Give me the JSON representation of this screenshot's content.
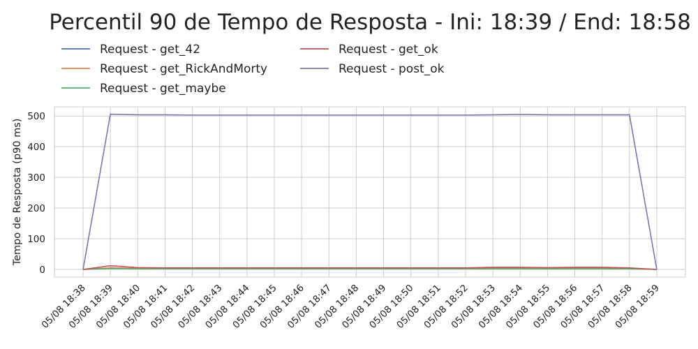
{
  "chart_data": {
    "type": "line",
    "title": "Percentil 90 de Tempo de Resposta - Ini: 18:39 / End: 18:58",
    "xlabel": "",
    "ylabel": "Tempo de Resposta (p90 ms)",
    "ylim": [
      -25,
      530
    ],
    "yticks": [
      0,
      100,
      200,
      300,
      400,
      500
    ],
    "grid": true,
    "legend_position": "top-left, outside plot, 2 columns",
    "x": [
      "05/08 18:38",
      "05/08 18:39",
      "05/08 18:40",
      "05/08 18:41",
      "05/08 18:42",
      "05/08 18:43",
      "05/08 18:44",
      "05/08 18:45",
      "05/08 18:46",
      "05/08 18:47",
      "05/08 18:48",
      "05/08 18:49",
      "05/08 18:50",
      "05/08 18:51",
      "05/08 18:52",
      "05/08 18:53",
      "05/08 18:54",
      "05/08 18:55",
      "05/08 18:56",
      "05/08 18:57",
      "05/08 18:58",
      "05/08 18:59"
    ],
    "series": [
      {
        "name": "Request - get_42",
        "color": "#4c72b0",
        "values": [
          0,
          4,
          3,
          3,
          3,
          3,
          3,
          3,
          3,
          3,
          3,
          3,
          3,
          3,
          3,
          3,
          3,
          3,
          3,
          3,
          3,
          0
        ]
      },
      {
        "name": "Request - get_RickAndMorty",
        "color": "#dd8452",
        "values": [
          0,
          5,
          4,
          4,
          4,
          4,
          4,
          4,
          4,
          4,
          4,
          4,
          4,
          4,
          4,
          4,
          4,
          4,
          4,
          4,
          4,
          0
        ]
      },
      {
        "name": "Request - get_maybe",
        "color": "#55a868",
        "values": [
          0,
          3,
          2,
          2,
          2,
          2,
          2,
          2,
          2,
          2,
          2,
          2,
          2,
          2,
          2,
          2,
          2,
          2,
          2,
          2,
          2,
          0
        ]
      },
      {
        "name": "Request - get_ok",
        "color": "#c44e52",
        "values": [
          0,
          12,
          6,
          5,
          5,
          5,
          5,
          5,
          5,
          5,
          5,
          5,
          5,
          5,
          5,
          7,
          7,
          6,
          7,
          7,
          5,
          0
        ]
      },
      {
        "name": "Request - post_ok",
        "color": "#8172b3",
        "values": [
          0,
          506,
          504,
          504,
          503,
          503,
          503,
          503,
          503,
          503,
          503,
          503,
          503,
          503,
          503,
          504,
          505,
          504,
          504,
          504,
          504,
          0
        ]
      }
    ]
  }
}
